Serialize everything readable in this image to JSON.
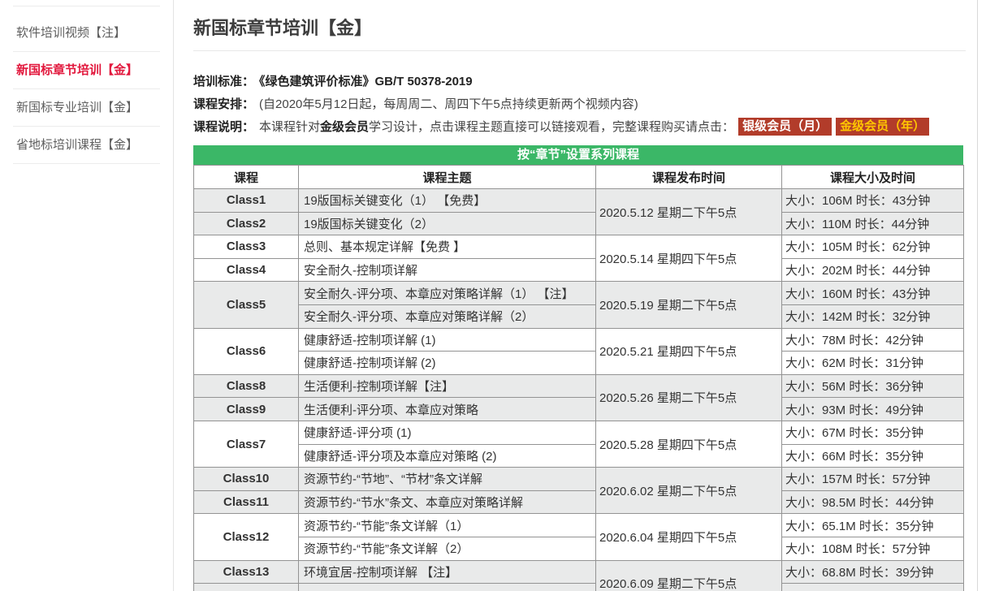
{
  "colors": {
    "banner-green": "#3bb767",
    "btn-red": "#b23c2a",
    "gold": "#ffc600",
    "active-red": "#e2183d"
  },
  "sidebar": {
    "items": [
      {
        "label": "软件培训视频【注】",
        "active": false
      },
      {
        "label": "新国标章节培训【金】",
        "active": true
      },
      {
        "label": "新国标专业培训【金】",
        "active": false
      },
      {
        "label": "省地标培训课程【金】",
        "active": false
      }
    ]
  },
  "header": {
    "title": "新国标章节培训【金】"
  },
  "info": {
    "line1_label": "培训标准：",
    "line1_text": "《绿色建筑评价标准》GB/T 50378-2019",
    "line2_label": "课程安排：",
    "line2_text": "(自2020年5月12日起，每周周二、周四下午5点持续更新两个视频内容)",
    "line3_label": "课程说明：",
    "line3_pre": "本课程针对",
    "line3_bold": "金级会员",
    "line3_post": "学习设计，点击课程主题直接可以链接观看，完整课程购买请点击：",
    "btn_silver": "银级会员（月）",
    "btn_gold": "金级会员（年）"
  },
  "table": {
    "banner": "按“章节”设置系列课程",
    "headers": [
      "课程",
      "课程主题",
      "课程发布时间",
      "课程大小及时间"
    ],
    "groups": [
      {
        "date": "2020.5.12 星期二下午5点",
        "shade": true,
        "rows": [
          {
            "class": "Class1",
            "topic": "19版国标关键变化（1） 【免费】",
            "size": "大小：106M 时长：43分钟"
          },
          {
            "class": "Class2",
            "topic": "19版国标关键变化（2）",
            "size": "大小：110M 时长：44分钟"
          }
        ]
      },
      {
        "date": "2020.5.14 星期四下午5点",
        "shade": false,
        "rows": [
          {
            "class": "Class3",
            "topic": "总则、基本规定详解【免费 】",
            "size": "大小：105M 时长：62分钟"
          },
          {
            "class": "Class4",
            "topic": "安全耐久-控制项详解",
            "size": "大小：202M 时长：44分钟"
          }
        ]
      },
      {
        "date": "2020.5.19 星期二下午5点",
        "shade": true,
        "class_label": "Class5",
        "rows": [
          {
            "topic": "安全耐久-评分项、本章应对策略详解（1） 【注】",
            "size": "大小：160M 时长：43分钟"
          },
          {
            "topic": "安全耐久-评分项、本章应对策略详解（2）",
            "size": "大小：142M 时长：32分钟"
          }
        ]
      },
      {
        "date": "2020.5.21 星期四下午5点",
        "shade": false,
        "class_label": "Class6",
        "rows": [
          {
            "topic": "健康舒适-控制项详解 (1)",
            "size": "大小：78M 时长：42分钟"
          },
          {
            "topic": "健康舒适-控制项详解 (2)",
            "size": "大小：62M 时长：31分钟"
          }
        ]
      },
      {
        "date": "2020.5.26 星期二下午5点",
        "shade": true,
        "rows": [
          {
            "class": "Class8",
            "topic": "生活便利-控制项详解【注】",
            "size": "大小：56M 时长：36分钟"
          },
          {
            "class": "Class9",
            "topic": "生活便利-评分项、本章应对策略",
            "size": "大小：93M 时长：49分钟"
          }
        ]
      },
      {
        "date": "2020.5.28 星期四下午5点",
        "shade": false,
        "class_label": "Class7",
        "rows": [
          {
            "topic": "健康舒适-评分项 (1)",
            "size": "大小：67M 时长：35分钟"
          },
          {
            "topic": "健康舒适-评分项及本章应对策略 (2)",
            "size": "大小：66M 时长：35分钟"
          }
        ]
      },
      {
        "date": "2020.6.02 星期二下午5点",
        "shade": true,
        "rows": [
          {
            "class": "Class10",
            "topic": "资源节约-“节地”、“节材”条文详解",
            "size": "大小：157M 时长：57分钟"
          },
          {
            "class": "Class11",
            "topic": "资源节约-“节水”条文、本章应对策略详解",
            "size": "大小：98.5M 时长：44分钟"
          }
        ]
      },
      {
        "date": "2020.6.04 星期四下午5点",
        "shade": false,
        "class_label": "Class12",
        "rows": [
          {
            "topic": "资源节约-“节能”条文详解（1）",
            "size": "大小：65.1M 时长：35分钟"
          },
          {
            "topic": "资源节约-“节能”条文详解（2）",
            "size": "大小：108M 时长：57分钟"
          }
        ]
      },
      {
        "date": "2020.6.09 星期二下午5点",
        "shade": true,
        "rows": [
          {
            "class": "Class13",
            "topic": "环境宜居-控制项详解 【注】",
            "size": "大小：68.8M 时长：39分钟"
          },
          {
            "class": "",
            "topic": "",
            "size": ""
          }
        ]
      }
    ]
  }
}
